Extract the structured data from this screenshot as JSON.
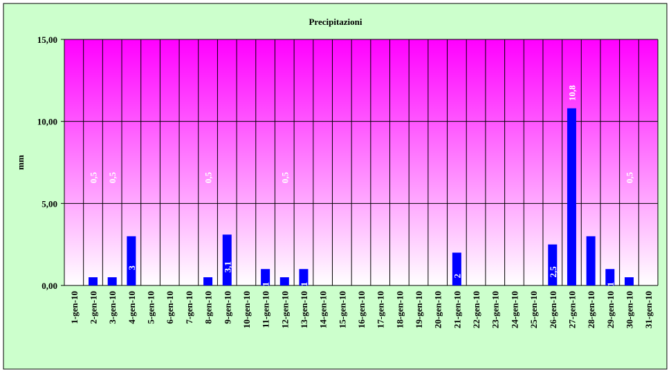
{
  "chart_data": {
    "type": "bar",
    "title": "Precipitazioni",
    "y_label": "mm",
    "categories": [
      "1-gen-10",
      "2-gen-10",
      "3-gen-10",
      "4-gen-10",
      "5-gen-10",
      "6-gen-10",
      "7-gen-10",
      "8-gen-10",
      "9-gen-10",
      "10-gen-10",
      "11-gen-10",
      "12-gen-10",
      "13-gen-10",
      "14-gen-10",
      "15-gen-10",
      "16-gen-10",
      "17-gen-10",
      "18-gen-10",
      "19-gen-10",
      "20-gen-10",
      "21-gen-10",
      "22-gen-10",
      "23-gen-10",
      "24-gen-10",
      "25-gen-10",
      "26-gen-10",
      "27-gen-10",
      "28-gen-10",
      "29-gen-10",
      "30-gen-10",
      "31-gen-10"
    ],
    "values": [
      0,
      0.5,
      0.5,
      3,
      0,
      0,
      0,
      0.5,
      3.1,
      0,
      1,
      0.5,
      1,
      0,
      0,
      0,
      0,
      0,
      0,
      0,
      2,
      0,
      0,
      0,
      0,
      2.5,
      10.8,
      3,
      1,
      0.5,
      0
    ],
    "value_labels": [
      null,
      "0,5",
      "0,5",
      "3",
      null,
      null,
      null,
      "0,5",
      "3,1",
      null,
      "1",
      "0,5",
      "1",
      null,
      null,
      null,
      null,
      null,
      null,
      null,
      "2",
      null,
      null,
      null,
      null,
      "2,5",
      "10,8",
      null,
      "1",
      "0,5",
      null
    ],
    "color": "#0000ff",
    "ylim": [
      0,
      15
    ],
    "yticks": [
      {
        "value": 0,
        "label": "0,00"
      },
      {
        "value": 5,
        "label": "5,00"
      },
      {
        "value": 10,
        "label": "10,00"
      },
      {
        "value": 15,
        "label": "15,00"
      }
    ],
    "grid": true
  }
}
